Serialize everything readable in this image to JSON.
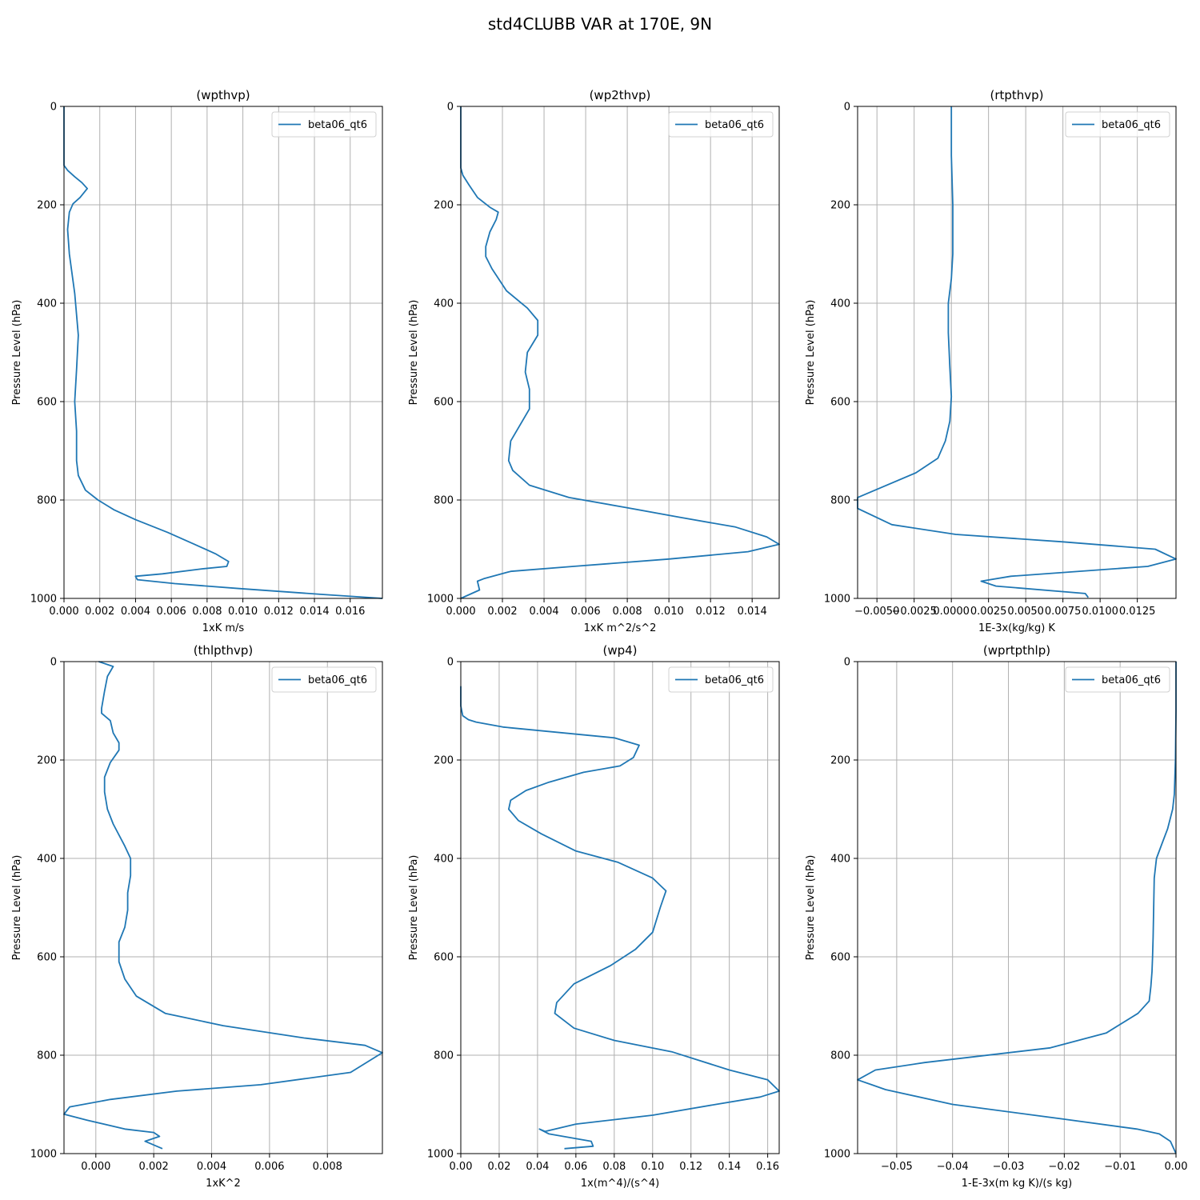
{
  "figure": {
    "suptitle": "std4CLUBB VAR at 170E, 9N",
    "layout": "2 rows x 3 columns",
    "series_color": "#1f77b4",
    "grid_color": "#b0b0b0"
  },
  "chart_data": [
    {
      "type": "line",
      "title": "(wpthvp)",
      "xlabel": "1xK m/s",
      "ylabel": "Pressure Level (hPa)",
      "xlim": [
        0.0,
        0.0178
      ],
      "ylim": [
        1000,
        0
      ],
      "grid": true,
      "legend_position": "top-right",
      "xticks": [
        0.0,
        0.002,
        0.004,
        0.006,
        0.008,
        0.01,
        0.012,
        0.014,
        0.016
      ],
      "xtick_labels": [
        "0.000",
        "0.002",
        "0.004",
        "0.006",
        "0.008",
        "0.010",
        "0.012",
        "0.014",
        "0.016"
      ],
      "yticks": [
        0,
        200,
        400,
        600,
        800,
        1000
      ],
      "ytick_labels": [
        "0",
        "200",
        "400",
        "600",
        "800",
        "1000"
      ],
      "series": [
        {
          "name": "beta06_qt6",
          "x": [
            0.0,
            0.0,
            0.0,
            0.0002,
            0.0006,
            0.001,
            0.0013,
            0.0009,
            0.0005,
            0.0003,
            0.0002,
            0.0003,
            0.0006,
            0.0008,
            0.0007,
            0.0006,
            0.0007,
            0.0007,
            0.0007,
            0.0008,
            0.0012,
            0.0019,
            0.0028,
            0.004,
            0.0058,
            0.0073,
            0.0085,
            0.0092,
            0.0091,
            0.0077,
            0.0055,
            0.004,
            0.0041,
            0.0062,
            0.0098,
            0.0145,
            0.0178
          ],
          "y": [
            0,
            50,
            120,
            130,
            143,
            155,
            167,
            185,
            198,
            215,
            250,
            300,
            380,
            465,
            535,
            600,
            660,
            690,
            720,
            750,
            780,
            800,
            820,
            840,
            866,
            890,
            910,
            925,
            935,
            940,
            950,
            955,
            962,
            970,
            980,
            992,
            1000
          ]
        }
      ]
    },
    {
      "type": "line",
      "title": "(wp2thvp)",
      "xlabel": "1xK m^2/s^2",
      "ylabel": "Pressure Level (hPa)",
      "xlim": [
        0.0,
        0.0153
      ],
      "ylim": [
        1000,
        0
      ],
      "grid": true,
      "legend_position": "top-right",
      "xticks": [
        0.0,
        0.002,
        0.004,
        0.006,
        0.008,
        0.01,
        0.012,
        0.014
      ],
      "xtick_labels": [
        "0.000",
        "0.002",
        "0.004",
        "0.006",
        "0.008",
        "0.010",
        "0.012",
        "0.014"
      ],
      "yticks": [
        0,
        200,
        400,
        600,
        800,
        1000
      ],
      "ytick_labels": [
        "0",
        "200",
        "400",
        "600",
        "800",
        "1000"
      ],
      "series": [
        {
          "name": "beta06_qt6",
          "x": [
            0.0,
            0.0,
            0.0,
            0.0001,
            0.0004,
            0.0008,
            0.0014,
            0.0018,
            0.0017,
            0.0014,
            0.0012,
            0.0012,
            0.0015,
            0.0022,
            0.0032,
            0.0037,
            0.0037,
            0.0032,
            0.0031,
            0.0033,
            0.0033,
            0.0024,
            0.0023,
            0.0025,
            0.0033,
            0.0052,
            0.0079,
            0.0105,
            0.0132,
            0.0147,
            0.0153,
            0.0138,
            0.01,
            0.0054,
            0.0024,
            0.0011,
            0.0008,
            0.0009,
            0.0
          ],
          "y": [
            0,
            80,
            125,
            140,
            160,
            185,
            205,
            215,
            230,
            255,
            285,
            305,
            330,
            375,
            410,
            435,
            465,
            500,
            540,
            575,
            615,
            680,
            720,
            740,
            770,
            795,
            815,
            835,
            855,
            875,
            890,
            905,
            920,
            935,
            945,
            960,
            965,
            983,
            1000
          ]
        }
      ]
    },
    {
      "type": "line",
      "title": "(rtpthvp)",
      "xlabel": "1E-3x(kg/kg) K",
      "ylabel": "Pressure Level (hPa)",
      "xlim": [
        -0.0063,
        0.0151
      ],
      "ylim": [
        1000,
        0
      ],
      "grid": true,
      "legend_position": "top-right",
      "xticks": [
        -0.005,
        -0.0025,
        0.0,
        0.0025,
        0.005,
        0.0075,
        0.01,
        0.0125
      ],
      "xtick_labels": [
        "−0.0050",
        "−0.0025",
        "0.0000",
        "0.0025",
        "0.0050",
        "0.0075",
        "0.0100",
        "0.0125"
      ],
      "yticks": [
        0,
        200,
        400,
        600,
        800,
        1000
      ],
      "ytick_labels": [
        "0",
        "200",
        "400",
        "600",
        "800",
        "1000"
      ],
      "series": [
        {
          "name": "beta06_qt6",
          "x": [
            0.0,
            0.0,
            0.0001,
            0.0001,
            0.0,
            -0.0002,
            -0.0002,
            -0.0001,
            0.0,
            -0.0001,
            -0.0004,
            -0.0009,
            -0.0024,
            -0.0063,
            -0.0063,
            -0.004,
            0.0003,
            0.0075,
            0.0137,
            0.0151,
            0.0132,
            0.004,
            0.002,
            0.003,
            0.009,
            0.0092
          ],
          "y": [
            0,
            100,
            200,
            300,
            350,
            400,
            460,
            530,
            590,
            640,
            680,
            715,
            745,
            795,
            817,
            850,
            870,
            885,
            900,
            920,
            935,
            955,
            965,
            975,
            990,
            998
          ]
        }
      ]
    },
    {
      "type": "line",
      "title": "(thlpthvp)",
      "xlabel": "1xK^2",
      "ylabel": "Pressure Level (hPa)",
      "xlim": [
        -0.0011,
        0.0099
      ],
      "ylim": [
        1000,
        0
      ],
      "grid": true,
      "legend_position": "top-right",
      "xticks": [
        0.0,
        0.002,
        0.004,
        0.006,
        0.008
      ],
      "xtick_labels": [
        "0.000",
        "0.002",
        "0.004",
        "0.006",
        "0.008"
      ],
      "yticks": [
        0,
        200,
        400,
        600,
        800,
        1000
      ],
      "ytick_labels": [
        "0",
        "200",
        "400",
        "600",
        "800",
        "1000"
      ],
      "series": [
        {
          "name": "beta06_qt6",
          "x": [
            0.0001,
            0.0006,
            0.0004,
            0.0003,
            0.0002,
            0.0002,
            0.0005,
            0.0006,
            0.0008,
            0.0008,
            0.0005,
            0.0003,
            0.0003,
            0.0004,
            0.0006,
            0.001,
            0.0012,
            0.0012,
            0.0011,
            0.0011,
            0.001,
            0.0008,
            0.0008,
            0.001,
            0.0014,
            0.0024,
            0.0044,
            0.0072,
            0.0093,
            0.0099,
            0.0088,
            0.0057,
            0.0028,
            0.0005,
            -0.0009,
            -0.0011,
            -0.0003,
            0.001,
            0.002,
            0.0022,
            0.0017,
            0.0023
          ],
          "y": [
            0,
            10,
            30,
            60,
            95,
            105,
            120,
            145,
            165,
            180,
            205,
            235,
            265,
            300,
            330,
            375,
            400,
            435,
            470,
            505,
            540,
            570,
            610,
            645,
            680,
            715,
            740,
            765,
            780,
            795,
            835,
            860,
            873,
            890,
            905,
            920,
            932,
            950,
            957,
            965,
            975,
            990
          ]
        }
      ]
    },
    {
      "type": "line",
      "title": "(wp4)",
      "xlabel": "1x(m^4)/(s^4)",
      "ylabel": "Pressure Level (hPa)",
      "xlim": [
        0.0,
        0.166
      ],
      "ylim": [
        1000,
        0
      ],
      "grid": true,
      "legend_position": "top-right",
      "xticks": [
        0.0,
        0.02,
        0.04,
        0.06,
        0.08,
        0.1,
        0.12,
        0.14,
        0.16
      ],
      "xtick_labels": [
        "0.00",
        "0.02",
        "0.04",
        "0.06",
        "0.08",
        "0.10",
        "0.12",
        "0.14",
        "0.16"
      ],
      "yticks": [
        0,
        200,
        400,
        600,
        800,
        1000
      ],
      "ytick_labels": [
        "0",
        "200",
        "400",
        "600",
        "800",
        "1000"
      ],
      "series": [
        {
          "name": "beta06_qt6",
          "x": [
            0.0,
            0.0,
            0.001,
            0.004,
            0.008,
            0.022,
            0.08,
            0.093,
            0.09,
            0.083,
            0.064,
            0.046,
            0.034,
            0.026,
            0.025,
            0.03,
            0.042,
            0.06,
            0.082,
            0.1,
            0.107,
            0.104,
            0.1,
            0.091,
            0.078,
            0.059,
            0.05,
            0.049,
            0.059,
            0.08,
            0.11,
            0.14,
            0.16,
            0.166,
            0.156,
            0.133,
            0.1,
            0.06,
            0.044,
            0.041,
            0.046,
            0.068,
            0.069,
            0.054
          ],
          "y": [
            50,
            90,
            110,
            118,
            123,
            133,
            155,
            170,
            195,
            212,
            225,
            245,
            262,
            282,
            300,
            323,
            350,
            385,
            408,
            440,
            466,
            500,
            550,
            585,
            618,
            655,
            693,
            715,
            745,
            770,
            793,
            830,
            850,
            873,
            885,
            900,
            922,
            940,
            955,
            950,
            960,
            975,
            985,
            990
          ]
        }
      ]
    },
    {
      "type": "line",
      "title": "(wprtpthlp)",
      "xlabel": "1-E-3x(m kg K)/(s kg)",
      "ylabel": "Pressure Level (hPa)",
      "xlim": [
        -0.057,
        0.0
      ],
      "ylim": [
        1000,
        0
      ],
      "grid": true,
      "legend_position": "top-right",
      "xticks": [
        -0.05,
        -0.04,
        -0.03,
        -0.02,
        -0.01,
        0.0
      ],
      "xtick_labels": [
        "−0.05",
        "−0.04",
        "−0.03",
        "−0.02",
        "−0.01",
        "0.00"
      ],
      "yticks": [
        0,
        200,
        400,
        600,
        800,
        1000
      ],
      "ytick_labels": [
        "0",
        "200",
        "400",
        "600",
        "800",
        "1000"
      ],
      "series": [
        {
          "name": "beta06_qt6",
          "x": [
            0.0,
            0.0,
            -0.0001,
            -0.0003,
            -0.0006,
            -0.0015,
            -0.0025,
            -0.0035,
            -0.0039,
            -0.004,
            -0.0041,
            -0.0042,
            -0.0043,
            -0.0045,
            -0.0048,
            -0.0068,
            -0.0125,
            -0.0225,
            -0.045,
            -0.0538,
            -0.057,
            -0.0545,
            -0.052,
            -0.04,
            -0.02,
            -0.007,
            -0.003,
            -0.001,
            0.0
          ],
          "y": [
            0,
            100,
            200,
            270,
            300,
            340,
            370,
            400,
            440,
            500,
            560,
            600,
            630,
            660,
            690,
            715,
            755,
            785,
            815,
            830,
            850,
            860,
            870,
            900,
            930,
            950,
            960,
            975,
            1000
          ]
        }
      ]
    }
  ]
}
